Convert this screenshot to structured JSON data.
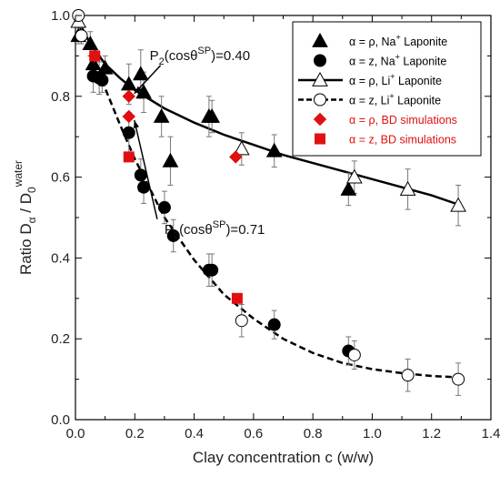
{
  "chart_data": {
    "type": "scatter",
    "title": "",
    "x_axis": {
      "label_text": "Clay concentration c",
      "label_unit": " (w/w)",
      "range": [
        0.0,
        1.4
      ],
      "ticks": [
        0.0,
        0.2,
        0.4,
        0.6,
        0.8,
        1.0,
        1.2,
        1.4
      ],
      "tick_labels": [
        "0.0",
        "0.2",
        "0.4",
        "0.6",
        "0.8",
        "1.0",
        "1.2",
        "1.4"
      ]
    },
    "y_axis": {
      "label_prefix": "Ratio  D",
      "label_sub1": "α",
      "label_mid": " / D",
      "label_sub2": "0",
      "label_sup": "water",
      "range": [
        0.0,
        1.0
      ],
      "ticks": [
        0.0,
        0.2,
        0.4,
        0.6,
        0.8,
        1.0
      ],
      "tick_labels": [
        "0.0",
        "0.2",
        "0.4",
        "0.6",
        "0.8",
        "1.0"
      ]
    },
    "legend": {
      "placement": "top-right",
      "entries": [
        {
          "pre": "α = ρ, Na",
          "sup": "+",
          "post": " Laponite",
          "marker": "filled-triangle",
          "color": "#000000"
        },
        {
          "pre": "α = z, Na",
          "sup": "+",
          "post": " Laponite",
          "marker": "filled-circle",
          "color": "#000000"
        },
        {
          "pre": "α = ρ, Li",
          "sup": "+",
          "post": " Laponite",
          "marker": "open-triangle-solid-line",
          "color": "#000000"
        },
        {
          "pre": "α = z, Li",
          "sup": "+",
          "post": " Laponite",
          "marker": "open-circle-dashed-line",
          "color": "#000000"
        },
        {
          "pre": "α = ρ, BD simulations",
          "sup": "",
          "post": "",
          "marker": "red-diamond",
          "color": "#e01010"
        },
        {
          "pre": "α = z, BD simulations",
          "sup": "",
          "post": "",
          "marker": "red-square",
          "color": "#e01010"
        }
      ]
    },
    "series": [
      {
        "name": "α = ρ, Na+ Laponite",
        "marker": "filled-triangle",
        "color": "#000000",
        "points": [
          {
            "x": 0.01,
            "y": 0.95,
            "err": 0.02
          },
          {
            "x": 0.05,
            "y": 0.93,
            "err": 0.03
          },
          {
            "x": 0.06,
            "y": 0.88,
            "err": 0.03
          },
          {
            "x": 0.1,
            "y": 0.87,
            "err": 0.03
          },
          {
            "x": 0.18,
            "y": 0.83,
            "err": 0.05
          },
          {
            "x": 0.22,
            "y": 0.855,
            "err": 0.06
          },
          {
            "x": 0.23,
            "y": 0.81,
            "err": 0.05
          },
          {
            "x": 0.29,
            "y": 0.75,
            "err": 0.05
          },
          {
            "x": 0.32,
            "y": 0.64,
            "err": 0.06
          },
          {
            "x": 0.45,
            "y": 0.75,
            "err": 0.05
          },
          {
            "x": 0.46,
            "y": 0.75,
            "err": 0.04
          },
          {
            "x": 0.67,
            "y": 0.665,
            "err": 0.04
          },
          {
            "x": 0.92,
            "y": 0.57,
            "err": 0.04
          }
        ]
      },
      {
        "name": "α = z, Na+ Laponite",
        "marker": "filled-circle",
        "color": "#000000",
        "points": [
          {
            "x": 0.06,
            "y": 0.85,
            "err": 0.04
          },
          {
            "x": 0.08,
            "y": 0.845,
            "err": 0.04
          },
          {
            "x": 0.09,
            "y": 0.84,
            "err": 0.03
          },
          {
            "x": 0.18,
            "y": 0.71,
            "err": 0.05
          },
          {
            "x": 0.22,
            "y": 0.605,
            "err": 0.04
          },
          {
            "x": 0.23,
            "y": 0.575,
            "err": 0.04
          },
          {
            "x": 0.3,
            "y": 0.525,
            "err": 0.04
          },
          {
            "x": 0.33,
            "y": 0.455,
            "err": 0.04
          },
          {
            "x": 0.45,
            "y": 0.37,
            "err": 0.04
          },
          {
            "x": 0.46,
            "y": 0.37,
            "err": 0.04
          },
          {
            "x": 0.67,
            "y": 0.235,
            "err": 0.035
          },
          {
            "x": 0.92,
            "y": 0.17,
            "err": 0.035
          }
        ]
      },
      {
        "name": "α = ρ, Li+ Laponite",
        "marker": "open-triangle",
        "color": "#000000",
        "points": [
          {
            "x": 0.01,
            "y": 0.985,
            "err": 0.01
          },
          {
            "x": 0.56,
            "y": 0.67,
            "err": 0.04
          },
          {
            "x": 0.94,
            "y": 0.6,
            "err": 0.04
          },
          {
            "x": 1.12,
            "y": 0.57,
            "err": 0.05
          },
          {
            "x": 1.29,
            "y": 0.53,
            "err": 0.05
          }
        ]
      },
      {
        "name": "α = z, Li+ Laponite",
        "marker": "open-circle",
        "color": "#000000",
        "points": [
          {
            "x": 0.01,
            "y": 1.0,
            "err": 0.0
          },
          {
            "x": 0.02,
            "y": 0.95,
            "err": 0.02
          },
          {
            "x": 0.56,
            "y": 0.245,
            "err": 0.04
          },
          {
            "x": 0.94,
            "y": 0.16,
            "err": 0.035
          },
          {
            "x": 1.12,
            "y": 0.11,
            "err": 0.04
          },
          {
            "x": 1.29,
            "y": 0.1,
            "err": 0.04
          }
        ]
      },
      {
        "name": "α = ρ, BD simulations",
        "marker": "red-diamond",
        "color": "#e01010",
        "points": [
          {
            "x": 0.065,
            "y": 0.9
          },
          {
            "x": 0.18,
            "y": 0.8
          },
          {
            "x": 0.18,
            "y": 0.75
          },
          {
            "x": 0.54,
            "y": 0.65
          }
        ]
      },
      {
        "name": "α = z, BD simulations",
        "marker": "red-square",
        "color": "#e01010",
        "points": [
          {
            "x": 0.065,
            "y": 0.9
          },
          {
            "x": 0.18,
            "y": 0.65
          },
          {
            "x": 0.545,
            "y": 0.3
          }
        ]
      }
    ],
    "fit_lines": [
      {
        "style": "solid",
        "color": "#000000",
        "points": [
          [
            0.0,
            1.0
          ],
          [
            0.05,
            0.93
          ],
          [
            0.1,
            0.88
          ],
          [
            0.15,
            0.845
          ],
          [
            0.2,
            0.815
          ],
          [
            0.3,
            0.77
          ],
          [
            0.4,
            0.735
          ],
          [
            0.5,
            0.705
          ],
          [
            0.6,
            0.68
          ],
          [
            0.7,
            0.655
          ],
          [
            0.8,
            0.635
          ],
          [
            0.9,
            0.615
          ],
          [
            1.0,
            0.595
          ],
          [
            1.1,
            0.575
          ],
          [
            1.2,
            0.555
          ],
          [
            1.28,
            0.535
          ]
        ]
      },
      {
        "style": "dashed",
        "color": "#000000",
        "points": [
          [
            0.0,
            1.0
          ],
          [
            0.05,
            0.91
          ],
          [
            0.1,
            0.82
          ],
          [
            0.15,
            0.73
          ],
          [
            0.2,
            0.645
          ],
          [
            0.3,
            0.5
          ],
          [
            0.4,
            0.395
          ],
          [
            0.5,
            0.31
          ],
          [
            0.6,
            0.25
          ],
          [
            0.7,
            0.2
          ],
          [
            0.8,
            0.165
          ],
          [
            0.9,
            0.14
          ],
          [
            1.0,
            0.125
          ],
          [
            1.1,
            0.115
          ],
          [
            1.2,
            0.108
          ],
          [
            1.28,
            0.105
          ]
        ]
      }
    ],
    "annotations": [
      {
        "pre": "P",
        "sub": "2",
        "mid": "(cosθ",
        "sup": "SP",
        "post": ")=0.40",
        "x": 0.25,
        "y": 0.89,
        "arrow_to": [
          0.18,
          0.8
        ]
      },
      {
        "pre": "P",
        "sub": "2",
        "mid": "(cosθ",
        "sup": "SP",
        "post": ")=0.71",
        "x": 0.3,
        "y": 0.46,
        "arrow_to": [
          0.18,
          0.75
        ]
      }
    ]
  }
}
